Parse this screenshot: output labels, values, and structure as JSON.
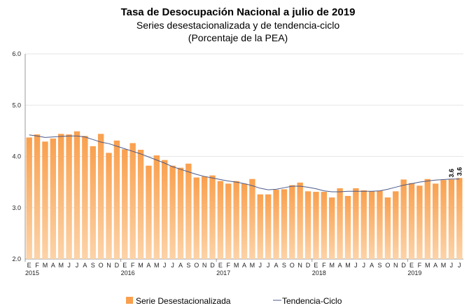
{
  "chart_data": {
    "type": "bar",
    "title": "Tasa de Desocupación Nacional a julio de 2019",
    "subtitle": "Series desestacionalizada y de tendencia-ciclo",
    "subtitle2": "(Porcentaje de la PEA)",
    "ylim": [
      2.0,
      6.0
    ],
    "yticks": [
      "2.0",
      "3.0",
      "4.0",
      "5.0",
      "6.0"
    ],
    "month_labels": [
      "E",
      "F",
      "M",
      "A",
      "M",
      "J",
      "J",
      "A",
      "S",
      "O",
      "N",
      "D"
    ],
    "years": [
      "2015",
      "2016",
      "2017",
      "2018",
      "2019"
    ],
    "grid": true,
    "legend_position": "bottom",
    "colors": {
      "bar": "#f9a04e",
      "bar_light": "#fcd3a8",
      "line": "#4b5a8a"
    },
    "series": [
      {
        "name": "Serie Desestacionalizada",
        "type": "bar",
        "values": [
          4.37,
          4.43,
          4.29,
          4.35,
          4.44,
          4.43,
          4.49,
          4.4,
          4.2,
          4.44,
          4.07,
          4.31,
          4.14,
          4.26,
          4.13,
          3.82,
          4.02,
          3.93,
          3.82,
          3.78,
          3.86,
          3.59,
          3.61,
          3.63,
          3.52,
          3.47,
          3.52,
          3.47,
          3.56,
          3.26,
          3.26,
          3.35,
          3.36,
          3.44,
          3.49,
          3.32,
          3.31,
          3.31,
          3.2,
          3.38,
          3.23,
          3.38,
          3.34,
          3.32,
          3.33,
          3.2,
          3.32,
          3.55,
          3.48,
          3.43,
          3.56,
          3.47,
          3.54,
          3.55,
          3.58
        ]
      },
      {
        "name": "Tendencia-Ciclo",
        "type": "line",
        "values": [
          4.42,
          4.4,
          4.37,
          4.38,
          4.39,
          4.4,
          4.4,
          4.38,
          4.33,
          4.28,
          4.25,
          4.2,
          4.15,
          4.1,
          4.05,
          3.99,
          3.93,
          3.87,
          3.8,
          3.75,
          3.7,
          3.65,
          3.61,
          3.58,
          3.55,
          3.52,
          3.5,
          3.47,
          3.43,
          3.38,
          3.35,
          3.36,
          3.39,
          3.42,
          3.42,
          3.4,
          3.37,
          3.33,
          3.31,
          3.31,
          3.32,
          3.32,
          3.32,
          3.32,
          3.33,
          3.36,
          3.4,
          3.44,
          3.47,
          3.5,
          3.52,
          3.54,
          3.55,
          3.56,
          3.56
        ]
      }
    ],
    "data_labels": [
      "3.6",
      "3.6"
    ]
  }
}
